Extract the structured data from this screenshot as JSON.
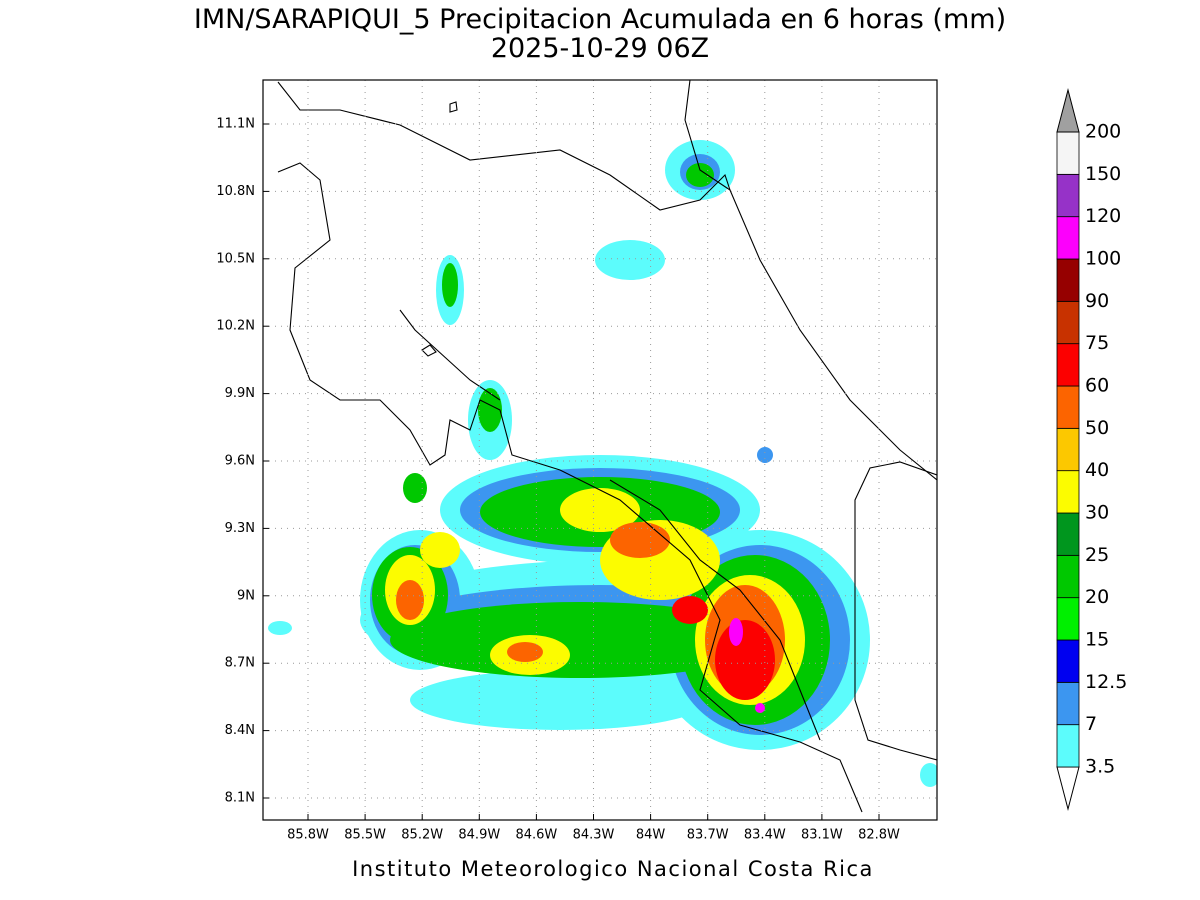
{
  "header": {
    "title": "IMN/SARAPIQUI_5 Precipitacion Acumulada en 6 horas (mm)",
    "subtitle": "2025-10-29 06Z"
  },
  "map": {
    "lat_ticks": [
      "11.1N",
      "10.8N",
      "10.5N",
      "10.2N",
      "9.9N",
      "9.6N",
      "9.3N",
      "9N",
      "8.7N",
      "8.4N",
      "8.1N"
    ],
    "lon_ticks": [
      "85.8W",
      "85.5W",
      "85.2W",
      "84.9W",
      "84.6W",
      "84.3W",
      "84W",
      "83.7W",
      "83.4W",
      "83.1W",
      "82.8W"
    ]
  },
  "colorbar": {
    "labels": [
      "3.5",
      "7",
      "12.5",
      "15",
      "20",
      "25",
      "30",
      "40",
      "50",
      "60",
      "75",
      "90",
      "100",
      "120",
      "150",
      "200"
    ],
    "colors": [
      "#5cfcfc",
      "#3c96f0",
      "#0000f0",
      "#00f000",
      "#00c800",
      "#00961e",
      "#fcfc00",
      "#fcc800",
      "#fc6400",
      "#fc0000",
      "#c83200",
      "#960000",
      "#fc00fc",
      "#9632c8",
      "#f5f5f5"
    ],
    "under_color": "#ffffff",
    "over_color": "#a0a0a0"
  },
  "footer": "Instituto Meteorologico Nacional Costa Rica"
}
